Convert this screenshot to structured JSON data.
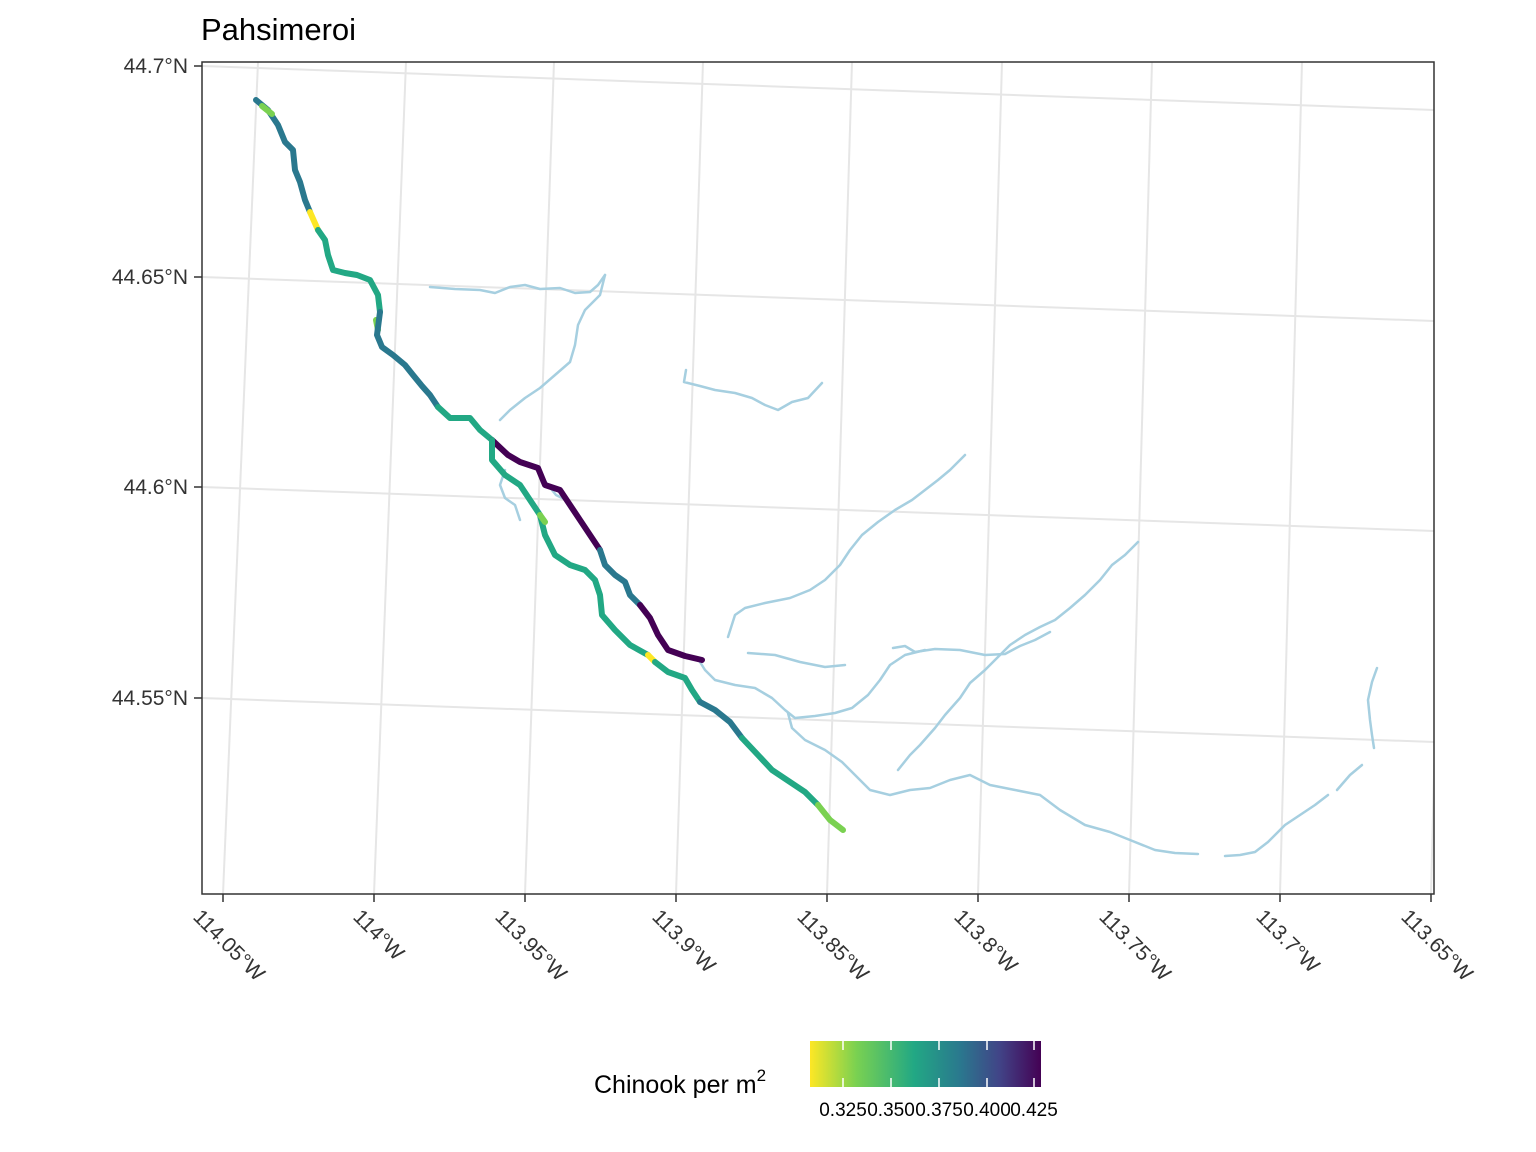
{
  "title": "Pahsimeroi",
  "axes": {
    "lat_labels": [
      "44.7°N",
      "44.65°N",
      "44.6°N",
      "44.55°N"
    ],
    "lon_labels": [
      "114.05°W",
      "114°W",
      "113.95°W",
      "113.9°W",
      "113.85°W",
      "113.8°W",
      "113.75°W",
      "113.7°W",
      "113.65°W"
    ]
  },
  "legend": {
    "title_main": "Chinook per m",
    "title_sup": "2",
    "tick_labels": [
      "0.325",
      "0.350",
      "0.375",
      "0.400",
      "0.425"
    ],
    "colors": [
      "#fde725",
      "#7ad151",
      "#22a884",
      "#2a788e",
      "#414487",
      "#440154"
    ]
  },
  "colors": {
    "stream": "#a6cfe0",
    "grid": "#e6e6e6",
    "panel_border": "#333333"
  }
}
